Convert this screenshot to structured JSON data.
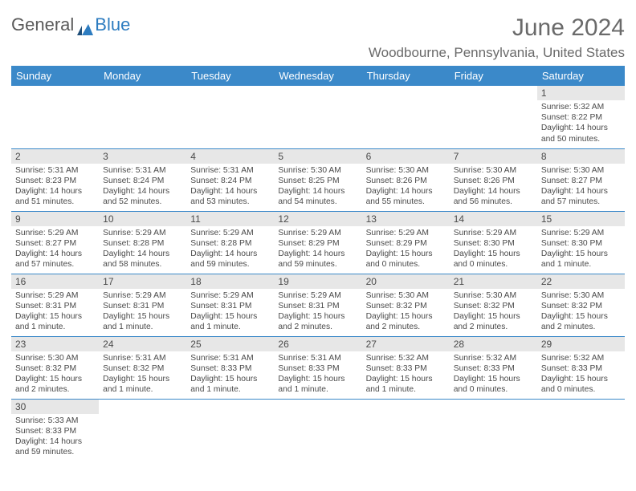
{
  "branding": {
    "logo_general": "General",
    "logo_blue": "Blue"
  },
  "header": {
    "month_title": "June 2024",
    "location": "Woodbourne, Pennsylvania, United States"
  },
  "colors": {
    "header_bg": "#3b89c9",
    "header_text": "#ffffff",
    "daynum_bg": "#e7e7e7",
    "row_divider": "#3b89c9",
    "body_text": "#4a4a4a",
    "title_text": "#6a6a6a"
  },
  "weekdays": [
    "Sunday",
    "Monday",
    "Tuesday",
    "Wednesday",
    "Thursday",
    "Friday",
    "Saturday"
  ],
  "weeks": [
    [
      null,
      null,
      null,
      null,
      null,
      null,
      {
        "n": "1",
        "sr": "Sunrise: 5:32 AM",
        "ss": "Sunset: 8:22 PM",
        "dl": "Daylight: 14 hours and 50 minutes."
      }
    ],
    [
      {
        "n": "2",
        "sr": "Sunrise: 5:31 AM",
        "ss": "Sunset: 8:23 PM",
        "dl": "Daylight: 14 hours and 51 minutes."
      },
      {
        "n": "3",
        "sr": "Sunrise: 5:31 AM",
        "ss": "Sunset: 8:24 PM",
        "dl": "Daylight: 14 hours and 52 minutes."
      },
      {
        "n": "4",
        "sr": "Sunrise: 5:31 AM",
        "ss": "Sunset: 8:24 PM",
        "dl": "Daylight: 14 hours and 53 minutes."
      },
      {
        "n": "5",
        "sr": "Sunrise: 5:30 AM",
        "ss": "Sunset: 8:25 PM",
        "dl": "Daylight: 14 hours and 54 minutes."
      },
      {
        "n": "6",
        "sr": "Sunrise: 5:30 AM",
        "ss": "Sunset: 8:26 PM",
        "dl": "Daylight: 14 hours and 55 minutes."
      },
      {
        "n": "7",
        "sr": "Sunrise: 5:30 AM",
        "ss": "Sunset: 8:26 PM",
        "dl": "Daylight: 14 hours and 56 minutes."
      },
      {
        "n": "8",
        "sr": "Sunrise: 5:30 AM",
        "ss": "Sunset: 8:27 PM",
        "dl": "Daylight: 14 hours and 57 minutes."
      }
    ],
    [
      {
        "n": "9",
        "sr": "Sunrise: 5:29 AM",
        "ss": "Sunset: 8:27 PM",
        "dl": "Daylight: 14 hours and 57 minutes."
      },
      {
        "n": "10",
        "sr": "Sunrise: 5:29 AM",
        "ss": "Sunset: 8:28 PM",
        "dl": "Daylight: 14 hours and 58 minutes."
      },
      {
        "n": "11",
        "sr": "Sunrise: 5:29 AM",
        "ss": "Sunset: 8:28 PM",
        "dl": "Daylight: 14 hours and 59 minutes."
      },
      {
        "n": "12",
        "sr": "Sunrise: 5:29 AM",
        "ss": "Sunset: 8:29 PM",
        "dl": "Daylight: 14 hours and 59 minutes."
      },
      {
        "n": "13",
        "sr": "Sunrise: 5:29 AM",
        "ss": "Sunset: 8:29 PM",
        "dl": "Daylight: 15 hours and 0 minutes."
      },
      {
        "n": "14",
        "sr": "Sunrise: 5:29 AM",
        "ss": "Sunset: 8:30 PM",
        "dl": "Daylight: 15 hours and 0 minutes."
      },
      {
        "n": "15",
        "sr": "Sunrise: 5:29 AM",
        "ss": "Sunset: 8:30 PM",
        "dl": "Daylight: 15 hours and 1 minute."
      }
    ],
    [
      {
        "n": "16",
        "sr": "Sunrise: 5:29 AM",
        "ss": "Sunset: 8:31 PM",
        "dl": "Daylight: 15 hours and 1 minute."
      },
      {
        "n": "17",
        "sr": "Sunrise: 5:29 AM",
        "ss": "Sunset: 8:31 PM",
        "dl": "Daylight: 15 hours and 1 minute."
      },
      {
        "n": "18",
        "sr": "Sunrise: 5:29 AM",
        "ss": "Sunset: 8:31 PM",
        "dl": "Daylight: 15 hours and 1 minute."
      },
      {
        "n": "19",
        "sr": "Sunrise: 5:29 AM",
        "ss": "Sunset: 8:31 PM",
        "dl": "Daylight: 15 hours and 2 minutes."
      },
      {
        "n": "20",
        "sr": "Sunrise: 5:30 AM",
        "ss": "Sunset: 8:32 PM",
        "dl": "Daylight: 15 hours and 2 minutes."
      },
      {
        "n": "21",
        "sr": "Sunrise: 5:30 AM",
        "ss": "Sunset: 8:32 PM",
        "dl": "Daylight: 15 hours and 2 minutes."
      },
      {
        "n": "22",
        "sr": "Sunrise: 5:30 AM",
        "ss": "Sunset: 8:32 PM",
        "dl": "Daylight: 15 hours and 2 minutes."
      }
    ],
    [
      {
        "n": "23",
        "sr": "Sunrise: 5:30 AM",
        "ss": "Sunset: 8:32 PM",
        "dl": "Daylight: 15 hours and 2 minutes."
      },
      {
        "n": "24",
        "sr": "Sunrise: 5:31 AM",
        "ss": "Sunset: 8:32 PM",
        "dl": "Daylight: 15 hours and 1 minute."
      },
      {
        "n": "25",
        "sr": "Sunrise: 5:31 AM",
        "ss": "Sunset: 8:33 PM",
        "dl": "Daylight: 15 hours and 1 minute."
      },
      {
        "n": "26",
        "sr": "Sunrise: 5:31 AM",
        "ss": "Sunset: 8:33 PM",
        "dl": "Daylight: 15 hours and 1 minute."
      },
      {
        "n": "27",
        "sr": "Sunrise: 5:32 AM",
        "ss": "Sunset: 8:33 PM",
        "dl": "Daylight: 15 hours and 1 minute."
      },
      {
        "n": "28",
        "sr": "Sunrise: 5:32 AM",
        "ss": "Sunset: 8:33 PM",
        "dl": "Daylight: 15 hours and 0 minutes."
      },
      {
        "n": "29",
        "sr": "Sunrise: 5:32 AM",
        "ss": "Sunset: 8:33 PM",
        "dl": "Daylight: 15 hours and 0 minutes."
      }
    ],
    [
      {
        "n": "30",
        "sr": "Sunrise: 5:33 AM",
        "ss": "Sunset: 8:33 PM",
        "dl": "Daylight: 14 hours and 59 minutes."
      },
      null,
      null,
      null,
      null,
      null,
      null
    ]
  ]
}
